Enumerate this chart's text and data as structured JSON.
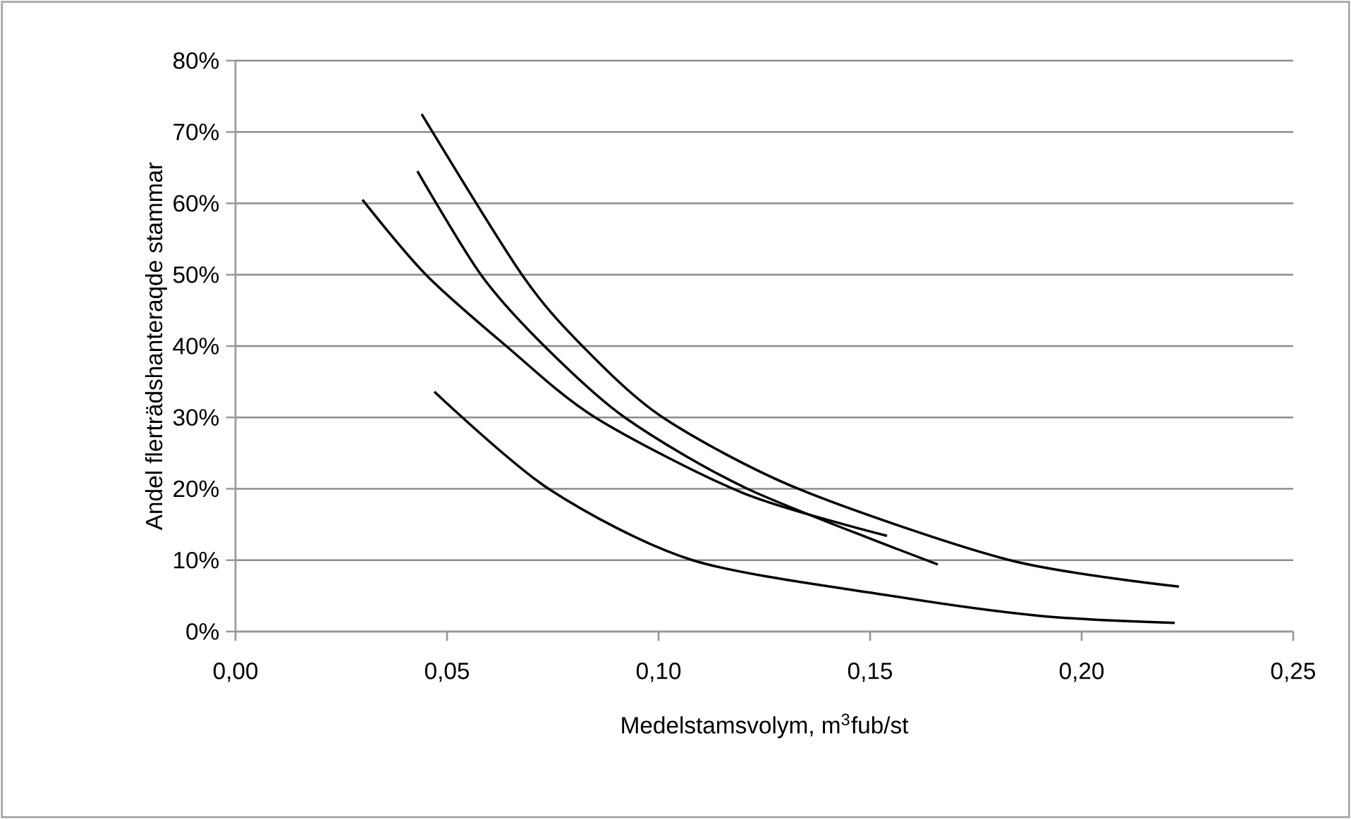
{
  "chart_data": {
    "type": "line",
    "xlabel": "Medelstamsvolym, m$^{3}$fub/st",
    "ylabel": "Andel flerträdshanteraqde stammar",
    "series": [
      {
        "color": "#000000",
        "x": [
          0.044,
          0.0677,
          0.082,
          0.101,
          0.133,
          0.183,
          0.223
        ],
        "values": [
          72.5,
          50,
          40,
          30,
          20,
          10,
          6.3
        ]
      },
      {
        "color": "#000000",
        "x": [
          0.043,
          0.058,
          0.073,
          0.092,
          0.121,
          0.166
        ],
        "values": [
          64.5,
          50,
          40,
          30,
          20,
          9.4
        ]
      },
      {
        "color": "#000000",
        "x": [
          0.03,
          0.045,
          0.064,
          0.085,
          0.12,
          0.154
        ],
        "values": [
          60.5,
          50,
          40,
          30,
          19.4,
          13.4
        ]
      },
      {
        "color": "#000000",
        "x": [
          0.047,
          0.074,
          0.108,
          0.155,
          0.19,
          0.222
        ],
        "values": [
          33.6,
          20,
          10,
          5,
          2.2,
          1.2
        ]
      }
    ],
    "xlim": [
      0,
      0.25
    ],
    "xticks": [
      {
        "value": 0,
        "label": "0,00"
      },
      {
        "value": 0.05,
        "label": "0,05"
      },
      {
        "value": 0.1,
        "label": "0,10"
      },
      {
        "value": 0.15,
        "label": "0,15"
      },
      {
        "value": 0.2,
        "label": "0,20"
      },
      {
        "value": 0.25,
        "label": "0,25"
      }
    ],
    "ylim": [
      0,
      80
    ],
    "yticks": [
      {
        "value": 0,
        "label": "0%"
      },
      {
        "value": 10,
        "label": "10%"
      },
      {
        "value": 20,
        "label": "20%"
      },
      {
        "value": 30,
        "label": "30%"
      },
      {
        "value": 40,
        "label": "40%"
      },
      {
        "value": 50,
        "label": "50%"
      },
      {
        "value": 60,
        "label": "60%"
      },
      {
        "value": 70,
        "label": "70%"
      },
      {
        "value": 80,
        "label": "80%"
      }
    ],
    "grid": "y",
    "legend": false
  }
}
